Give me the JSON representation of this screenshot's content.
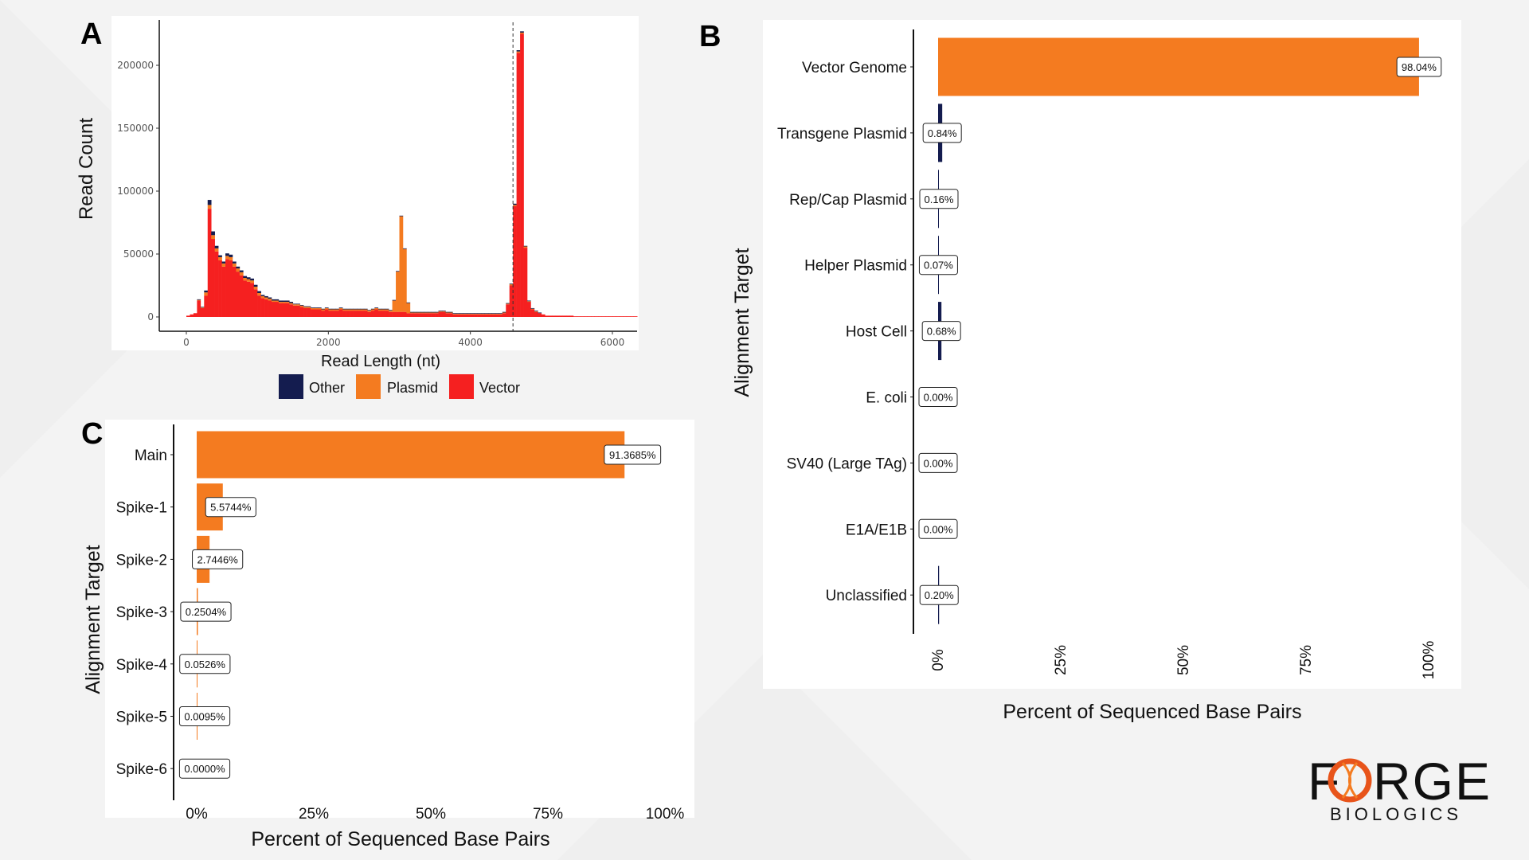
{
  "colors": {
    "vector": "#f52020",
    "plasmid": "#f47b20",
    "other": "#141c4f",
    "bar_orange": "#f47b20",
    "bar_navy": "#141c4f"
  },
  "logo": {
    "text": "FORGE",
    "subtitle": "BIOLOGICS"
  },
  "chart_data": [
    {
      "panel": "A",
      "type": "bar",
      "stacked": true,
      "xlabel": "Read Length (nt)",
      "ylabel": "Read Count",
      "xlim": [
        -300,
        6300
      ],
      "ylim": [
        -8000,
        235000
      ],
      "xticks": [
        "0",
        "2000",
        "4000",
        "6000"
      ],
      "yticks": [
        "0",
        "50000",
        "100000",
        "150000",
        "200000"
      ],
      "bin_start": 0,
      "bin_width": 50,
      "reference_line_x": 4600,
      "legend": {
        "placement": "bottom",
        "entries": [
          "Other",
          "Plasmid",
          "Vector"
        ]
      },
      "series": [
        {
          "name": "Vector",
          "values": [
            1000,
            2000,
            3000,
            13000,
            7000,
            17000,
            86000,
            62000,
            52000,
            45000,
            40000,
            46000,
            45000,
            40000,
            36000,
            33000,
            29000,
            28000,
            27000,
            22000,
            17000,
            15000,
            14000,
            13000,
            12000,
            12000,
            11000,
            11000,
            11000,
            10000,
            9000,
            9000,
            8000,
            7000,
            7000,
            6000,
            6000,
            6000,
            5000,
            6000,
            5000,
            5000,
            5000,
            6000,
            5000,
            5000,
            5000,
            5000,
            5000,
            5000,
            5000,
            4000,
            5000,
            6000,
            5000,
            5000,
            5000,
            4000,
            4000,
            4000,
            4000,
            4000,
            3000,
            3000,
            3000,
            3000,
            3000,
            3000,
            3000,
            3000,
            3000,
            4000,
            4000,
            3000,
            3000,
            2000,
            2000,
            2000,
            2000,
            2000,
            2000,
            2000,
            2000,
            2000,
            2000,
            2000,
            2000,
            2000,
            2000,
            3000,
            10000,
            25000,
            88000,
            210000,
            225000,
            55000,
            12000,
            6000,
            4000,
            3000,
            2000,
            1000,
            1000,
            1000,
            1000,
            1000,
            1000,
            1000,
            1000,
            500,
            500,
            500,
            500,
            500,
            500,
            500,
            500,
            500,
            500,
            500,
            500,
            500,
            500,
            500,
            500,
            500,
            500
          ]
        },
        {
          "name": "Plasmid",
          "values": [
            0,
            0,
            0,
            500,
            500,
            2500,
            3000,
            3000,
            2500,
            2500,
            2500,
            2500,
            2500,
            2500,
            2500,
            2500,
            2000,
            2000,
            2000,
            2000,
            2000,
            1500,
            1500,
            1500,
            1000,
            1000,
            1000,
            1000,
            1000,
            1000,
            1000,
            1000,
            1000,
            1000,
            1000,
            1000,
            1000,
            1000,
            1000,
            1000,
            1000,
            1000,
            1000,
            1000,
            1000,
            1000,
            1000,
            1000,
            1000,
            1000,
            1000,
            1000,
            1000,
            1000,
            1000,
            1000,
            1000,
            1000,
            9000,
            32000,
            76000,
            50000,
            8000,
            500,
            500,
            500,
            500,
            500,
            500,
            500,
            500,
            500,
            500,
            500,
            500,
            500,
            500,
            500,
            500,
            500,
            500,
            500,
            500,
            500,
            500,
            500,
            500,
            500,
            500,
            500,
            500,
            1000,
            1000,
            1000,
            1000,
            1000,
            500,
            500,
            500,
            0,
            0,
            0,
            0,
            0,
            0,
            0,
            0,
            0,
            0,
            0,
            0,
            0,
            0,
            0,
            0,
            0,
            0,
            0,
            0,
            0,
            0,
            0,
            0,
            0,
            0
          ]
        },
        {
          "name": "Other",
          "values": [
            0,
            0,
            0,
            500,
            500,
            1500,
            4000,
            3000,
            2000,
            1500,
            1500,
            2000,
            2000,
            1500,
            1500,
            1500,
            1500,
            1500,
            1500,
            1500,
            1500,
            1000,
            1000,
            1000,
            1000,
            1000,
            1000,
            1000,
            1000,
            1000,
            500,
            500,
            500,
            500,
            500,
            500,
            500,
            500,
            500,
            500,
            500,
            500,
            500,
            500,
            500,
            500,
            500,
            500,
            500,
            500,
            500,
            500,
            500,
            500,
            500,
            500,
            500,
            500,
            500,
            500,
            500,
            500,
            500,
            500,
            500,
            500,
            500,
            500,
            500,
            500,
            500,
            500,
            500,
            500,
            500,
            500,
            500,
            500,
            500,
            500,
            500,
            500,
            500,
            500,
            500,
            500,
            500,
            500,
            500,
            500,
            500,
            500,
            1000,
            1000,
            1000,
            500,
            500,
            500,
            500,
            500,
            0,
            0,
            0,
            0,
            0,
            0,
            0,
            0,
            0,
            0,
            0,
            0,
            0,
            0,
            0,
            0,
            0,
            0,
            0,
            0,
            0,
            0,
            0,
            0,
            0,
            0
          ]
        }
      ]
    },
    {
      "panel": "B",
      "type": "bar",
      "orientation": "horizontal",
      "xlabel": "Percent of Sequenced Base Pairs",
      "ylabel": "Alignment Target",
      "xlim": [
        0,
        100
      ],
      "xticks": [
        "0%",
        "25%",
        "50%",
        "75%",
        "100%"
      ],
      "categories": [
        "Vector Genome",
        "Transgene Plasmid",
        "Rep/Cap Plasmid",
        "Helper Plasmid",
        "Host Cell",
        "E. coli",
        "SV40 (Large TAg)",
        "E1A/E1B",
        "Unclassified"
      ],
      "values": [
        98.04,
        0.84,
        0.16,
        0.07,
        0.68,
        0.0,
        0.0,
        0.0,
        0.2
      ],
      "labels": [
        "98.04%",
        "0.84%",
        "0.16%",
        "0.07%",
        "0.68%",
        "0.00%",
        "0.00%",
        "0.00%",
        "0.20%"
      ]
    },
    {
      "panel": "C",
      "type": "bar",
      "orientation": "horizontal",
      "xlabel": "Percent of Sequenced Base Pairs",
      "ylabel": "Alignment Target",
      "xlim": [
        0,
        100
      ],
      "xticks": [
        "0%",
        "25%",
        "50%",
        "75%",
        "100%"
      ],
      "categories": [
        "Main",
        "Spike-1",
        "Spike-2",
        "Spike-3",
        "Spike-4",
        "Spike-5",
        "Spike-6"
      ],
      "values": [
        91.3685,
        5.5744,
        2.7446,
        0.2504,
        0.0526,
        0.0095,
        0.0
      ],
      "labels": [
        "91.3685%",
        "5.5744%",
        "2.7446%",
        "0.2504%",
        "0.0526%",
        "0.0095%",
        "0.0000%"
      ]
    }
  ],
  "panel_letters": [
    "A",
    "B",
    "C"
  ]
}
